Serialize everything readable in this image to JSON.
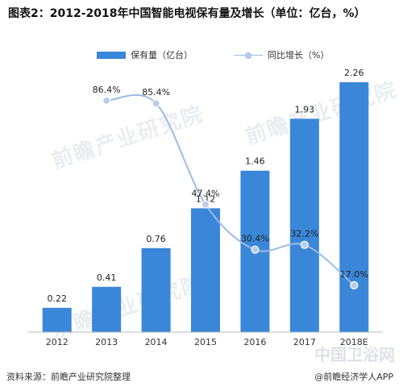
{
  "title": "图表2：2012-2018年中国智能电视保有量及增长（单位：亿台，%）",
  "legend": {
    "bar_label": "保有量（亿台）",
    "line_label": "同比增长（%）"
  },
  "footer": {
    "source": "资料来源：前瞻产业研究院整理",
    "brand": "@前瞻经济学人APP"
  },
  "watermarks": [
    "前瞻产业研究院",
    "前瞻产业研究院",
    "前瞻产业研究院",
    "中国卫浴网"
  ],
  "colors": {
    "bar": "#3a87d9",
    "line": "#9bbce3",
    "marker": "#b9cde6"
  },
  "chart_data": {
    "type": "bar",
    "categories": [
      "2012",
      "2013",
      "2014",
      "2015",
      "2016",
      "2017",
      "2018E"
    ],
    "series": [
      {
        "name": "保有量（亿台）",
        "type": "bar",
        "values": [
          0.22,
          0.41,
          0.76,
          1.12,
          1.46,
          1.93,
          2.26
        ],
        "labels": [
          "0.22",
          "0.41",
          "0.76",
          "1.12",
          "1.46",
          "1.93",
          "2.26"
        ]
      },
      {
        "name": "同比增长（%）",
        "type": "line",
        "values": [
          null,
          86.4,
          85.4,
          47.4,
          30.4,
          32.2,
          17.0
        ],
        "labels": [
          "",
          "86.4%",
          "85.4%",
          "47.4%",
          "30.4%",
          "32.2%",
          "17.0%"
        ]
      }
    ],
    "legend_position": "top",
    "grid": false
  }
}
